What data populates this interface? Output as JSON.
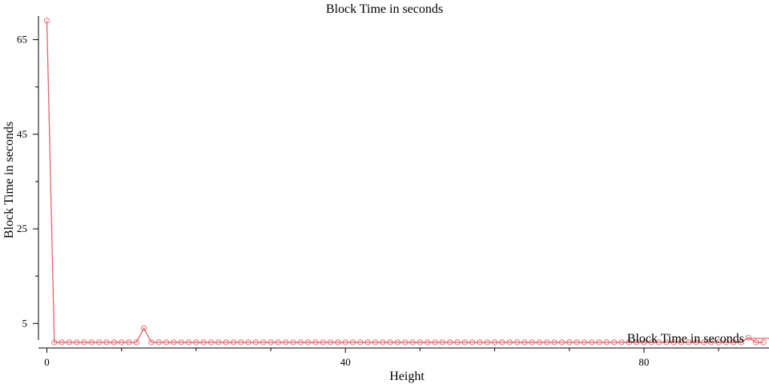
{
  "chart_data": {
    "type": "line",
    "title": "Block Time in seconds",
    "xlabel": "Height",
    "ylabel": "Block Time in seconds",
    "xlim": [
      0,
      96
    ],
    "ylim": [
      1.5,
      70
    ],
    "grid": false,
    "legend_position": "bottom-right",
    "x_major_ticks": [
      0,
      40,
      80
    ],
    "x_minor_ticks": [
      10,
      20,
      30,
      50,
      60,
      70,
      90
    ],
    "y_major_ticks": [
      5,
      25,
      45,
      65
    ],
    "y_minor_ticks": [
      15,
      35,
      55
    ],
    "series": [
      {
        "name": "Block Time in seconds",
        "color": "#e8636a",
        "x": [
          0,
          1,
          2,
          3,
          4,
          5,
          6,
          7,
          8,
          9,
          10,
          11,
          12,
          13,
          14,
          15,
          16,
          17,
          18,
          19,
          20,
          21,
          22,
          23,
          24,
          25,
          26,
          27,
          28,
          29,
          30,
          31,
          32,
          33,
          34,
          35,
          36,
          37,
          38,
          39,
          40,
          41,
          42,
          43,
          44,
          45,
          46,
          47,
          48,
          49,
          50,
          51,
          52,
          53,
          54,
          55,
          56,
          57,
          58,
          59,
          60,
          61,
          62,
          63,
          64,
          65,
          66,
          67,
          68,
          69,
          70,
          71,
          72,
          73,
          74,
          75,
          76,
          77,
          78,
          79,
          80,
          81,
          82,
          83,
          84,
          85,
          86,
          87,
          88,
          89,
          90,
          91,
          92,
          93,
          94,
          95,
          96
        ],
        "y": [
          69,
          1,
          1,
          1,
          1,
          1,
          1,
          1,
          1,
          1,
          1,
          1,
          1,
          4,
          1,
          1,
          1,
          1,
          1,
          1,
          1,
          1,
          1,
          1,
          1,
          1,
          1,
          1,
          1,
          1,
          1,
          1,
          1,
          1,
          1,
          1,
          1,
          1,
          1,
          1,
          1,
          1,
          1,
          1,
          1,
          1,
          1,
          1,
          1,
          1,
          1,
          1,
          1,
          1,
          1,
          1,
          1,
          1,
          1,
          1,
          1,
          1,
          1,
          1,
          1,
          1,
          1,
          1,
          1,
          1,
          1,
          1,
          1,
          1,
          1,
          1,
          1,
          1,
          1,
          1,
          1,
          1,
          1,
          1,
          1,
          1,
          1,
          1,
          1,
          1,
          1,
          1,
          1,
          1,
          2,
          1,
          1
        ]
      }
    ]
  }
}
